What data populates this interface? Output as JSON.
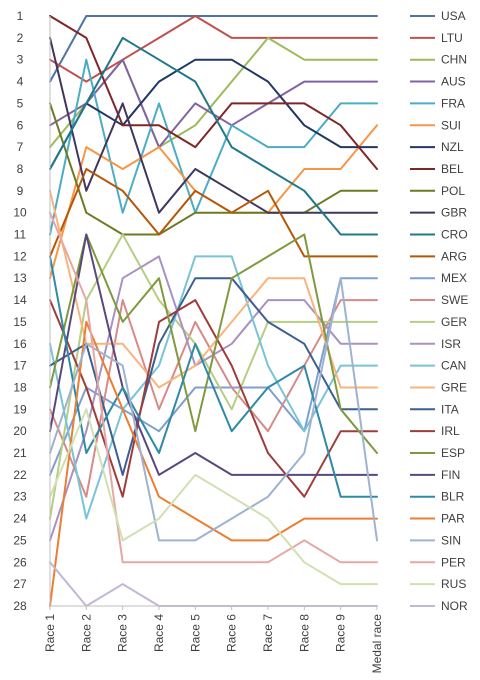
{
  "chart_data": {
    "type": "line",
    "title": "",
    "xlabel": "",
    "ylabel": "",
    "categories": [
      "Race 1",
      "Race 2",
      "Race 3",
      "Race 4",
      "Race 5",
      "Race 6",
      "Race 7",
      "Race 8",
      "Race 9",
      "Medal race"
    ],
    "y_ticks": [
      "1",
      "2",
      "3",
      "4",
      "5",
      "6",
      "7",
      "8",
      "9",
      "10",
      "11",
      "12",
      "13",
      "14",
      "15",
      "16",
      "17",
      "18",
      "19",
      "20",
      "21",
      "22",
      "23",
      "24",
      "25",
      "26",
      "27",
      "28"
    ],
    "ylim": [
      28,
      1
    ],
    "y_inverted": true,
    "grid": false,
    "legend": "right",
    "series": [
      {
        "name": "USA",
        "color": "#4f73a4",
        "values": [
          4,
          1,
          1,
          1,
          1,
          1,
          1,
          1,
          1,
          1
        ]
      },
      {
        "name": "LTU",
        "color": "#c0504d",
        "values": [
          3,
          4,
          3,
          2,
          1,
          2,
          2,
          2,
          2,
          2
        ]
      },
      {
        "name": "CHN",
        "color": "#9bbb59",
        "values": [
          7,
          5,
          3,
          7,
          6,
          4,
          2,
          3,
          3,
          3
        ]
      },
      {
        "name": "AUS",
        "color": "#8064a2",
        "values": [
          6,
          5,
          3,
          7,
          5,
          6,
          5,
          4,
          4,
          4
        ]
      },
      {
        "name": "FRA",
        "color": "#4bacc6",
        "values": [
          11,
          3,
          10,
          5,
          10,
          6,
          7,
          7,
          5,
          5
        ]
      },
      {
        "name": "SUI",
        "color": "#f79646",
        "values": [
          13,
          7,
          8,
          7,
          9,
          10,
          10,
          8,
          8,
          6
        ]
      },
      {
        "name": "NZL",
        "color": "#1f3864",
        "values": [
          8,
          5,
          6,
          4,
          3,
          3,
          4,
          6,
          7,
          7
        ]
      },
      {
        "name": "BEL",
        "color": "#7f2626",
        "values": [
          1,
          2,
          6,
          6,
          7,
          5,
          5,
          5,
          6,
          8
        ]
      },
      {
        "name": "POL",
        "color": "#6b7b22",
        "values": [
          5,
          10,
          11,
          11,
          10,
          10,
          10,
          10,
          9,
          9
        ]
      },
      {
        "name": "GBR",
        "color": "#41365c",
        "values": [
          2,
          9,
          5,
          10,
          8,
          9,
          10,
          10,
          10,
          10
        ]
      },
      {
        "name": "CRO",
        "color": "#21788a",
        "values": [
          8,
          5,
          2,
          3,
          4,
          7,
          8,
          9,
          11,
          11
        ]
      },
      {
        "name": "ARG",
        "color": "#b65708",
        "values": [
          12,
          8,
          9,
          11,
          9,
          10,
          9,
          12,
          12,
          12
        ]
      },
      {
        "name": "MEX",
        "color": "#7da0d0",
        "values": [
          22,
          18,
          19,
          20,
          18,
          18,
          18,
          20,
          13,
          13
        ]
      },
      {
        "name": "SWE",
        "color": "#d88a88",
        "values": [
          19,
          23,
          14,
          19,
          15,
          18,
          20,
          17,
          14,
          14
        ]
      },
      {
        "name": "GER",
        "color": "#b6cd82",
        "values": [
          24,
          14,
          11,
          14,
          16,
          19,
          15,
          15,
          15,
          15
        ]
      },
      {
        "name": "ISR",
        "color": "#a892c1",
        "values": [
          25,
          20,
          13,
          12,
          17,
          16,
          14,
          14,
          16,
          16
        ]
      },
      {
        "name": "CAN",
        "color": "#79c3d7",
        "values": [
          16,
          24,
          19,
          17,
          12,
          12,
          17,
          20,
          17,
          17
        ]
      },
      {
        "name": "GRE",
        "color": "#f9b47e",
        "values": [
          9,
          16,
          16,
          18,
          17,
          15,
          13,
          13,
          18,
          18
        ]
      },
      {
        "name": "ITA",
        "color": "#3b5f91",
        "values": [
          17,
          16,
          22,
          16,
          13,
          13,
          15,
          16,
          19,
          19
        ]
      },
      {
        "name": "IRL",
        "color": "#9e3d3a",
        "values": [
          14,
          18,
          23,
          15,
          14,
          17,
          21,
          23,
          20,
          20
        ]
      },
      {
        "name": "ESP",
        "color": "#7f9a3e",
        "values": [
          18,
          11,
          15,
          13,
          20,
          13,
          12,
          11,
          19,
          21
        ]
      },
      {
        "name": "FIN",
        "color": "#5a487d",
        "values": [
          20,
          11,
          18,
          22,
          21,
          22,
          22,
          22,
          22,
          22
        ]
      },
      {
        "name": "BLR",
        "color": "#2e8aa6",
        "values": [
          12,
          21,
          18,
          21,
          16,
          20,
          18,
          17,
          23,
          23
        ]
      },
      {
        "name": "PAR",
        "color": "#ed7d31",
        "values": [
          28,
          15,
          19,
          23,
          24,
          25,
          25,
          24,
          24,
          24
        ]
      },
      {
        "name": "SIN",
        "color": "#9db3d1",
        "values": [
          21,
          16,
          17,
          25,
          25,
          24,
          23,
          21,
          13,
          25
        ]
      },
      {
        "name": "PER",
        "color": "#e7a7a5",
        "values": [
          10,
          14,
          26,
          26,
          26,
          26,
          26,
          25,
          26,
          26
        ]
      },
      {
        "name": "RUS",
        "color": "#d1e0b0",
        "values": [
          23,
          19,
          25,
          24,
          22,
          23,
          24,
          26,
          27,
          27
        ]
      },
      {
        "name": "NOR",
        "color": "#c3b7d8",
        "values": [
          26,
          28,
          27,
          28,
          28,
          28,
          28,
          28,
          28,
          28
        ]
      }
    ]
  }
}
